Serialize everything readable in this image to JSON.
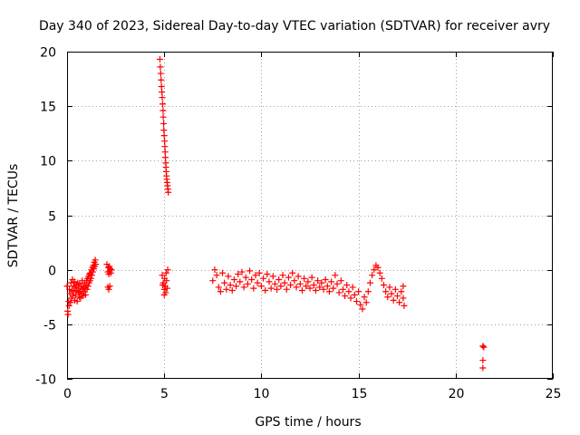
{
  "chart_data": {
    "type": "scatter",
    "title": "Day 340 of 2023, Sidereal Day-to-day VTEC variation (SDTVAR) for receiver avry",
    "xlabel": "GPS time / hours",
    "ylabel": "SDTVAR / TECUs",
    "xlim": [
      0,
      25
    ],
    "ylim": [
      -10,
      20
    ],
    "xticks": [
      "0",
      "5",
      "10",
      "15",
      "20",
      "25"
    ],
    "yticks": [
      "-10",
      "-5",
      "0",
      "5",
      "10",
      "15",
      "20"
    ],
    "xtick_values": [
      0,
      5,
      10,
      15,
      20,
      25
    ],
    "ytick_values": [
      -10,
      -5,
      0,
      5,
      10,
      15,
      20
    ],
    "grid": true,
    "marker": "+",
    "color": "#ff0000",
    "series": [
      {
        "name": "SDTVAR",
        "points": [
          [
            0.0,
            -1.5
          ],
          [
            0.03,
            -3.8
          ],
          [
            0.05,
            -4.1
          ],
          [
            0.08,
            -2.9
          ],
          [
            0.1,
            -3.3
          ],
          [
            0.12,
            -1.8
          ],
          [
            0.15,
            -2.2
          ],
          [
            0.18,
            -3.0
          ],
          [
            0.2,
            -1.2
          ],
          [
            0.22,
            -2.6
          ],
          [
            0.25,
            -1.9
          ],
          [
            0.28,
            -0.9
          ],
          [
            0.3,
            -2.4
          ],
          [
            0.33,
            -1.5
          ],
          [
            0.35,
            -2.0
          ],
          [
            0.38,
            -1.1
          ],
          [
            0.4,
            -2.8
          ],
          [
            0.42,
            -1.6
          ],
          [
            0.45,
            -2.3
          ],
          [
            0.48,
            -1.4
          ],
          [
            0.5,
            -1.9
          ],
          [
            0.52,
            -2.9
          ],
          [
            0.55,
            -1.2
          ],
          [
            0.58,
            -2.1
          ],
          [
            0.6,
            -1.7
          ],
          [
            0.63,
            -2.5
          ],
          [
            0.65,
            -1.3
          ],
          [
            0.68,
            -2.0
          ],
          [
            0.7,
            -2.6
          ],
          [
            0.73,
            -1.5
          ],
          [
            0.75,
            -2.2
          ],
          [
            0.78,
            -1.0
          ],
          [
            0.8,
            -1.8
          ],
          [
            0.83,
            -2.4
          ],
          [
            0.85,
            -1.6
          ],
          [
            0.88,
            -2.0
          ],
          [
            0.9,
            -1.2
          ],
          [
            0.93,
            -1.7
          ],
          [
            0.95,
            -2.3
          ],
          [
            0.98,
            -1.4
          ],
          [
            1.0,
            -1.0
          ],
          [
            1.03,
            -1.8
          ],
          [
            1.05,
            -0.8
          ],
          [
            1.08,
            -1.5
          ],
          [
            1.1,
            -0.6
          ],
          [
            1.13,
            -1.2
          ],
          [
            1.15,
            -0.4
          ],
          [
            1.18,
            -1.0
          ],
          [
            1.2,
            -0.3
          ],
          [
            1.23,
            -0.8
          ],
          [
            1.25,
            0.0
          ],
          [
            1.28,
            -0.5
          ],
          [
            1.3,
            0.2
          ],
          [
            1.33,
            -0.2
          ],
          [
            1.35,
            0.4
          ],
          [
            1.38,
            0.1
          ],
          [
            1.4,
            0.7
          ],
          [
            1.43,
            0.3
          ],
          [
            1.45,
            0.9
          ],
          [
            1.48,
            0.5
          ],
          [
            2.05,
            0.5
          ],
          [
            2.1,
            -0.2
          ],
          [
            2.12,
            0.2
          ],
          [
            2.15,
            -0.4
          ],
          [
            2.18,
            0.3
          ],
          [
            2.2,
            -0.1
          ],
          [
            2.22,
            0.1
          ],
          [
            2.25,
            -0.3
          ],
          [
            2.28,
            0.0
          ],
          [
            2.1,
            -1.6
          ],
          [
            2.15,
            -1.8
          ],
          [
            2.2,
            -1.5
          ],
          [
            4.78,
            19.3
          ],
          [
            4.8,
            18.6
          ],
          [
            4.82,
            18.0
          ],
          [
            4.84,
            17.4
          ],
          [
            4.86,
            16.8
          ],
          [
            4.88,
            16.3
          ],
          [
            4.9,
            15.8
          ],
          [
            4.92,
            15.2
          ],
          [
            4.94,
            14.6
          ],
          [
            4.95,
            14.0
          ],
          [
            4.97,
            13.4
          ],
          [
            4.98,
            12.8
          ],
          [
            5.0,
            12.3
          ],
          [
            5.02,
            11.8
          ],
          [
            5.03,
            11.3
          ],
          [
            5.05,
            10.8
          ],
          [
            5.06,
            10.3
          ],
          [
            5.08,
            9.8
          ],
          [
            5.09,
            9.4
          ],
          [
            5.1,
            9.0
          ],
          [
            5.12,
            8.6
          ],
          [
            5.13,
            8.3
          ],
          [
            5.15,
            8.0
          ],
          [
            5.17,
            7.7
          ],
          [
            5.19,
            7.4
          ],
          [
            5.21,
            7.1
          ],
          [
            4.9,
            -0.5
          ],
          [
            4.95,
            -1.2
          ],
          [
            5.0,
            -1.8
          ],
          [
            5.02,
            -0.8
          ],
          [
            5.05,
            -1.5
          ],
          [
            5.08,
            -2.1
          ],
          [
            5.1,
            -0.3
          ],
          [
            5.12,
            -1.0
          ],
          [
            5.15,
            -1.7
          ],
          [
            5.18,
            0.0
          ],
          [
            5.0,
            -2.3
          ],
          [
            4.92,
            -1.4
          ],
          [
            7.5,
            -1.0
          ],
          [
            7.6,
            0.0
          ],
          [
            7.7,
            -0.5
          ],
          [
            7.8,
            -1.6
          ],
          [
            7.9,
            -2.0
          ],
          [
            8.0,
            -0.3
          ],
          [
            8.1,
            -1.2
          ],
          [
            8.2,
            -1.8
          ],
          [
            8.3,
            -0.6
          ],
          [
            8.4,
            -1.4
          ],
          [
            8.5,
            -1.9
          ],
          [
            8.6,
            -0.9
          ],
          [
            8.7,
            -1.5
          ],
          [
            8.8,
            -0.4
          ],
          [
            8.9,
            -1.1
          ],
          [
            9.0,
            -0.2
          ],
          [
            9.1,
            -1.6
          ],
          [
            9.2,
            -0.7
          ],
          [
            9.3,
            -1.3
          ],
          [
            9.4,
            -0.1
          ],
          [
            9.5,
            -0.9
          ],
          [
            9.6,
            -1.7
          ],
          [
            9.7,
            -0.5
          ],
          [
            9.8,
            -1.2
          ],
          [
            9.9,
            -0.3
          ],
          [
            10.0,
            -1.5
          ],
          [
            10.1,
            -0.8
          ],
          [
            10.2,
            -1.9
          ],
          [
            10.3,
            -0.4
          ],
          [
            10.4,
            -1.1
          ],
          [
            10.5,
            -1.7
          ],
          [
            10.6,
            -0.6
          ],
          [
            10.7,
            -1.3
          ],
          [
            10.8,
            -1.8
          ],
          [
            10.9,
            -0.9
          ],
          [
            11.0,
            -1.5
          ],
          [
            11.1,
            -0.5
          ],
          [
            11.2,
            -1.2
          ],
          [
            11.3,
            -1.8
          ],
          [
            11.4,
            -0.7
          ],
          [
            11.5,
            -1.4
          ],
          [
            11.6,
            -0.3
          ],
          [
            11.7,
            -1.0
          ],
          [
            11.8,
            -1.6
          ],
          [
            11.9,
            -0.6
          ],
          [
            12.0,
            -1.3
          ],
          [
            12.1,
            -1.9
          ],
          [
            12.2,
            -0.8
          ],
          [
            12.3,
            -1.5
          ],
          [
            12.4,
            -1.1
          ],
          [
            12.5,
            -1.7
          ],
          [
            12.6,
            -0.7
          ],
          [
            12.7,
            -1.4
          ],
          [
            12.8,
            -1.9
          ],
          [
            12.9,
            -1.0
          ],
          [
            13.0,
            -1.6
          ],
          [
            13.1,
            -1.2
          ],
          [
            13.2,
            -1.8
          ],
          [
            13.3,
            -0.9
          ],
          [
            13.4,
            -1.5
          ],
          [
            13.5,
            -2.0
          ],
          [
            13.6,
            -1.1
          ],
          [
            13.7,
            -1.7
          ],
          [
            13.8,
            -0.5
          ],
          [
            13.9,
            -1.3
          ],
          [
            14.0,
            -2.1
          ],
          [
            14.1,
            -1.0
          ],
          [
            14.2,
            -1.8
          ],
          [
            14.3,
            -2.4
          ],
          [
            14.4,
            -1.4
          ],
          [
            14.5,
            -2.0
          ],
          [
            14.6,
            -2.6
          ],
          [
            14.7,
            -1.6
          ],
          [
            14.8,
            -2.3
          ],
          [
            14.9,
            -2.9
          ],
          [
            15.0,
            -2.0
          ],
          [
            15.1,
            -3.2
          ],
          [
            15.2,
            -3.6
          ],
          [
            15.3,
            -2.5
          ],
          [
            15.4,
            -3.0
          ],
          [
            15.5,
            -2.0
          ],
          [
            15.6,
            -1.2
          ],
          [
            15.7,
            -0.5
          ],
          [
            15.8,
            0.0
          ],
          [
            15.9,
            0.4
          ],
          [
            16.0,
            0.2
          ],
          [
            16.1,
            -0.3
          ],
          [
            16.2,
            -0.8
          ],
          [
            16.3,
            -1.4
          ],
          [
            16.4,
            -2.0
          ],
          [
            16.5,
            -2.5
          ],
          [
            16.6,
            -1.6
          ],
          [
            16.7,
            -2.2
          ],
          [
            16.8,
            -2.8
          ],
          [
            16.9,
            -1.8
          ],
          [
            17.0,
            -2.4
          ],
          [
            17.1,
            -3.0
          ],
          [
            17.2,
            -2.0
          ],
          [
            17.3,
            -1.5
          ],
          [
            17.35,
            -3.3
          ],
          [
            17.3,
            -2.6
          ],
          [
            21.4,
            -7.0
          ],
          [
            21.45,
            -7.1
          ],
          [
            21.4,
            -8.3
          ],
          [
            21.4,
            -9.0
          ]
        ]
      }
    ]
  }
}
